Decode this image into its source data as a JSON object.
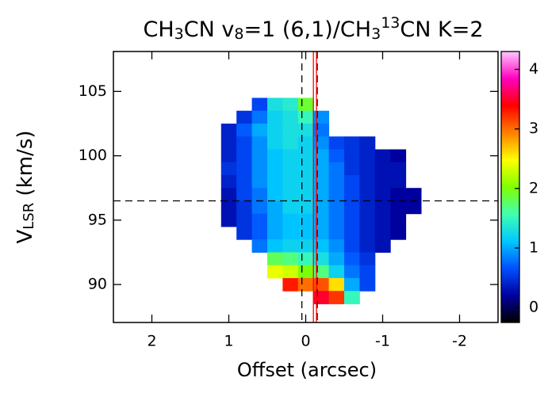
{
  "chart_data": {
    "type": "heatmap",
    "title": [
      "CH",
      "3",
      "CN v",
      "8",
      "=1 (6,1)/CH",
      "3",
      "13",
      "CN K=2"
    ],
    "xlabel": "Offset (arcsec)",
    "ylabel": [
      "V",
      "LSR",
      " (km/s)"
    ],
    "xlim": [
      2.5,
      -2.5
    ],
    "ylim": [
      87.05,
      108.1
    ],
    "xticks": [
      2,
      1,
      0,
      -1,
      -2
    ],
    "yticks": [
      90,
      95,
      100,
      105
    ],
    "clim": [
      -0.25,
      4.3
    ],
    "cticks": [
      0,
      1,
      2,
      3,
      4
    ],
    "colormap": [
      "#000000",
      "#0000a0",
      "#0050ff",
      "#00c8ff",
      "#40ffb0",
      "#80ff00",
      "#ffff00",
      "#ff8000",
      "#ff0000",
      "#ff00c0",
      "#ffc8ff"
    ],
    "x": [
      1.0,
      0.8,
      0.6,
      0.4,
      0.2,
      0.0,
      -0.2,
      -0.4,
      -0.6,
      -0.8,
      -1.0,
      -1.2,
      -1.4
    ],
    "y": [
      104,
      103,
      102,
      101,
      100,
      99,
      98,
      97,
      96,
      95,
      94,
      93,
      92,
      91,
      90,
      89
    ],
    "values": [
      [
        null,
        null,
        0.6,
        1.3,
        1.4,
        1.9,
        null,
        null,
        null,
        null,
        null,
        null,
        null
      ],
      [
        null,
        0.5,
        0.8,
        1.2,
        1.3,
        1.5,
        0.9,
        null,
        null,
        null,
        null,
        null,
        null
      ],
      [
        0.4,
        0.7,
        1.0,
        1.2,
        1.3,
        1.3,
        0.8,
        null,
        null,
        null,
        null,
        null,
        null
      ],
      [
        0.4,
        0.6,
        0.9,
        1.2,
        1.3,
        1.2,
        0.9,
        0.6,
        0.5,
        0.4,
        null,
        null,
        null
      ],
      [
        0.4,
        0.6,
        0.9,
        1.1,
        1.2,
        1.2,
        1.0,
        0.7,
        0.5,
        0.4,
        0.3,
        0.2,
        null
      ],
      [
        0.5,
        0.6,
        0.9,
        1.1,
        1.2,
        1.2,
        1.0,
        0.8,
        0.5,
        0.4,
        0.3,
        0.3,
        null
      ],
      [
        0.4,
        0.6,
        0.9,
        1.1,
        1.2,
        1.2,
        1.0,
        0.8,
        0.6,
        0.4,
        0.3,
        0.3,
        null
      ],
      [
        0.3,
        0.6,
        0.8,
        1.1,
        1.2,
        1.2,
        1.0,
        0.8,
        0.6,
        0.4,
        0.3,
        0.2,
        0.2
      ],
      [
        0.3,
        0.5,
        0.8,
        1.0,
        1.2,
        1.2,
        1.0,
        0.8,
        0.6,
        0.4,
        0.3,
        0.2,
        0.2
      ],
      [
        0.3,
        0.5,
        0.7,
        1.0,
        1.1,
        1.1,
        1.0,
        0.8,
        0.6,
        0.4,
        0.3,
        0.2,
        null
      ],
      [
        null,
        0.5,
        0.7,
        1.0,
        1.1,
        1.1,
        1.0,
        0.8,
        0.6,
        0.4,
        0.3,
        0.2,
        null
      ],
      [
        null,
        null,
        0.8,
        1.1,
        1.2,
        1.2,
        1.1,
        0.9,
        0.6,
        0.4,
        0.3,
        null,
        null
      ],
      [
        null,
        null,
        null,
        1.8,
        1.7,
        1.5,
        1.3,
        1.0,
        0.7,
        0.5,
        null,
        null,
        null
      ],
      [
        null,
        null,
        null,
        2.4,
        2.3,
        2.0,
        1.7,
        1.2,
        0.8,
        0.6,
        null,
        null,
        null
      ],
      [
        null,
        null,
        null,
        null,
        3.3,
        3.0,
        3.1,
        2.6,
        1.0,
        0.6,
        null,
        null,
        null
      ],
      [
        null,
        null,
        null,
        null,
        null,
        null,
        3.5,
        3.2,
        1.5,
        null,
        null,
        null,
        null
      ]
    ],
    "reference_lines": {
      "x": [
        0.05,
        -0.15
      ],
      "y": [
        96.5
      ],
      "x_red": [
        -0.1,
        -0.14
      ],
      "red_color": "#ff0000"
    }
  }
}
